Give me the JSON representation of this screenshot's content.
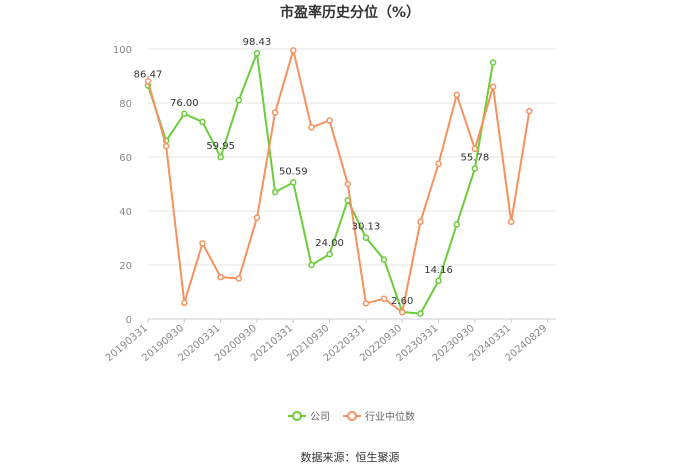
{
  "chart_data": {
    "type": "line",
    "title": "市盈率历史分位（%）",
    "ylim": [
      0,
      100
    ],
    "yticks": [
      0,
      20,
      40,
      60,
      80,
      100
    ],
    "x_tick_labels": [
      "20190331",
      "20190930",
      "20200331",
      "20200930",
      "20210331",
      "20210930",
      "20220331",
      "20220930",
      "20230331",
      "20230930",
      "20240331",
      "20240829"
    ],
    "grid": true,
    "legend_position": "bottom",
    "series": [
      {
        "name": "公司",
        "color": "#6acd3c",
        "values": [
          86.47,
          66,
          76.0,
          73,
          59.95,
          81,
          98.43,
          47,
          50.59,
          20,
          24.0,
          44,
          30.13,
          22,
          2.6,
          2,
          14.16,
          35,
          55.78,
          95
        ],
        "labels": {
          "0": "86.47",
          "2": "76.00",
          "4": "59.95",
          "6": "98.43",
          "8": "50.59",
          "10": "24.00",
          "12": "30.13",
          "14": "2.60",
          "16": "14.16",
          "18": "55.78"
        }
      },
      {
        "name": "行业中位数",
        "color": "#f5925f",
        "values": [
          88,
          64,
          6,
          28,
          15.5,
          15,
          37.5,
          76.5,
          99.5,
          71,
          73.5,
          50,
          5.8,
          7.5,
          2.5,
          36,
          57.5,
          83,
          63,
          86,
          36,
          77
        ]
      }
    ]
  },
  "source_text": "数据来源：恒生聚源"
}
